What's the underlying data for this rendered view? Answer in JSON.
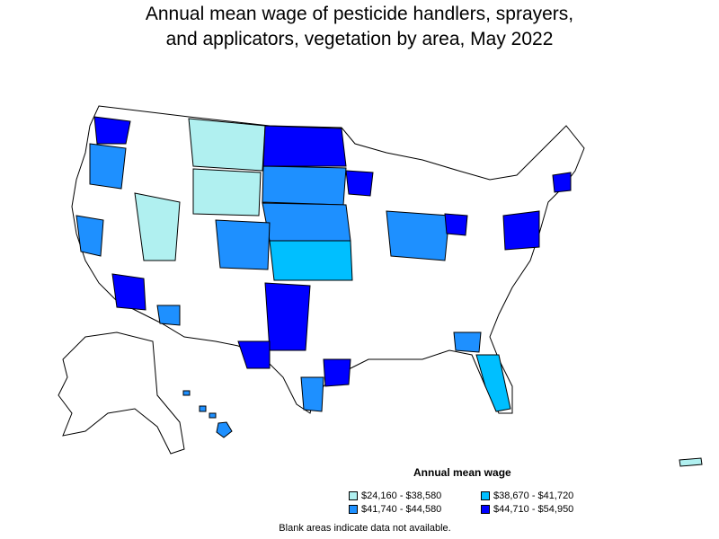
{
  "title_line1": "Annual mean wage of pesticide handlers, sprayers,",
  "title_line2": "and applicators, vegetation by area, May 2022",
  "legend": {
    "title": "Annual mean wage",
    "items": [
      {
        "label": "$24,160 - $38,580",
        "color": "#b0f0f0"
      },
      {
        "label": "$38,670 - $41,720",
        "color": "#00bfff"
      },
      {
        "label": "$41,740 - $44,580",
        "color": "#1e90ff"
      },
      {
        "label": "$44,710 - $54,950",
        "color": "#0000ff"
      }
    ]
  },
  "note": "Blank areas indicate data not available."
}
